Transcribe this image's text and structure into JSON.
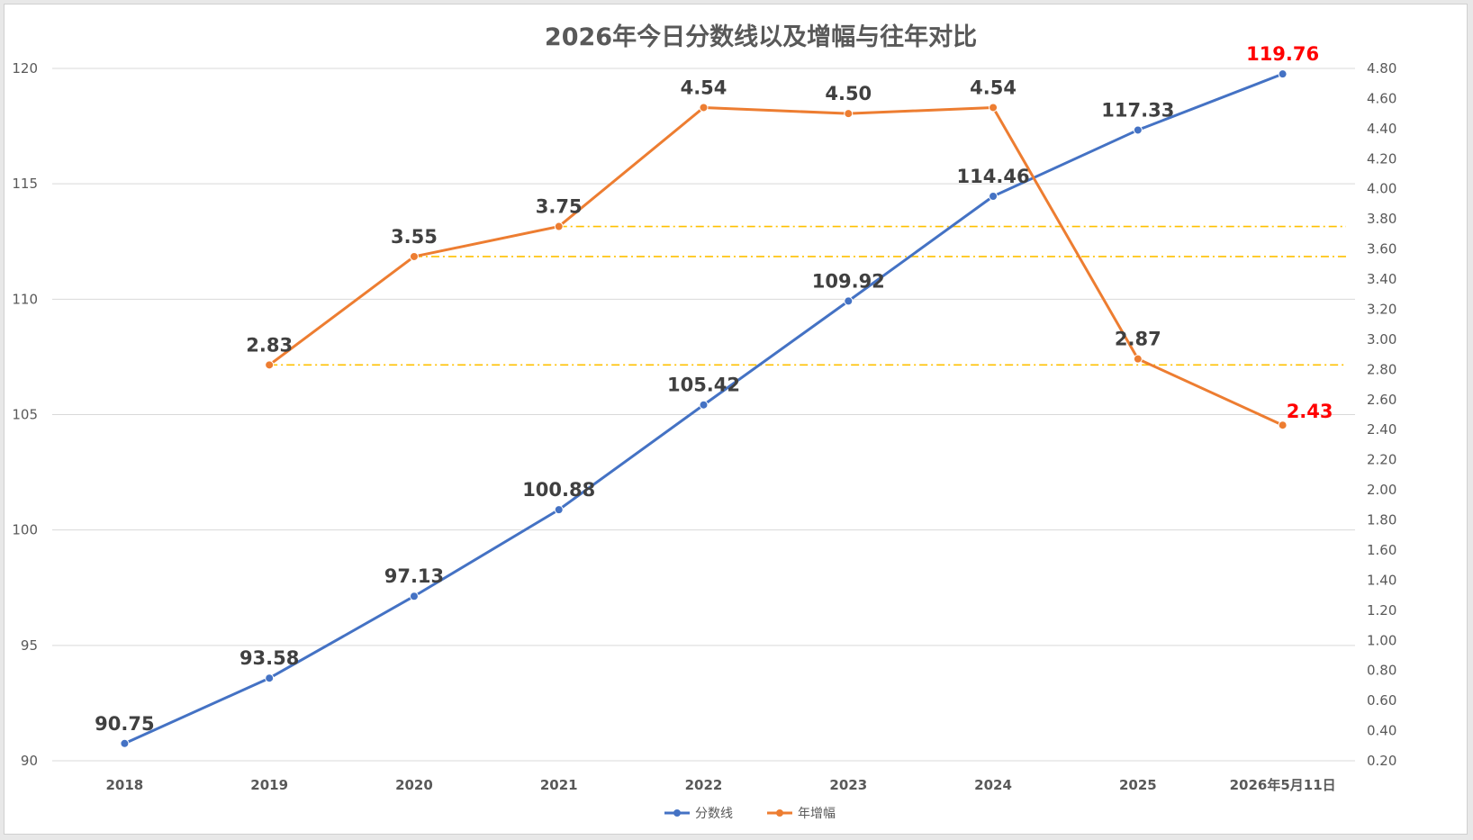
{
  "chart_data": {
    "type": "line",
    "title": "2026年今日分数线以及增幅与往年对比",
    "categories": [
      "2018",
      "2019",
      "2020",
      "2021",
      "2022",
      "2023",
      "2024",
      "2025",
      "2026年5月11日"
    ],
    "y_left": {
      "min": 90,
      "max": 120,
      "ticks": [
        "90",
        "95",
        "100",
        "105",
        "110",
        "115",
        "120"
      ]
    },
    "y_right": {
      "min": 0.2,
      "max": 4.8,
      "ticks": [
        "0.20",
        "0.40",
        "0.60",
        "0.80",
        "1.00",
        "1.20",
        "1.40",
        "1.60",
        "1.80",
        "2.00",
        "2.20",
        "2.40",
        "2.60",
        "2.80",
        "3.00",
        "3.20",
        "3.40",
        "3.60",
        "3.80",
        "4.00",
        "4.20",
        "4.40",
        "4.60",
        "4.80"
      ]
    },
    "series": [
      {
        "name": "分数线",
        "axis": "left",
        "color": "#4472c4",
        "values": [
          90.75,
          93.58,
          97.13,
          100.88,
          105.42,
          109.92,
          114.46,
          117.33,
          119.76
        ],
        "labels": [
          "90.75",
          "93.58",
          "97.13",
          "100.88",
          "105.42",
          "109.92",
          "114.46",
          "117.33",
          "119.76"
        ],
        "label_colors": [
          "#404040",
          "#404040",
          "#404040",
          "#404040",
          "#404040",
          "#404040",
          "#404040",
          "#404040",
          "#ff0000"
        ]
      },
      {
        "name": "年增幅",
        "axis": "right",
        "color": "#ed7d31",
        "values": [
          null,
          2.83,
          3.55,
          3.75,
          4.54,
          4.5,
          4.54,
          2.87,
          2.43
        ],
        "labels": [
          "",
          "2.83",
          "3.55",
          "3.75",
          "4.54",
          "4.50",
          "4.54",
          "2.87",
          "2.43"
        ],
        "label_colors": [
          "#404040",
          "#404040",
          "#404040",
          "#404040",
          "#404040",
          "#404040",
          "#404040",
          "#404040",
          "#ff0000"
        ]
      }
    ],
    "reference_lines": [
      {
        "axis": "right",
        "value": 2.83,
        "from_category": 1,
        "color": "#ffc000"
      },
      {
        "axis": "right",
        "value": 3.55,
        "from_category": 2,
        "color": "#ffc000"
      },
      {
        "axis": "right",
        "value": 3.75,
        "from_category": 3,
        "color": "#ffc000"
      }
    ],
    "grid": true,
    "legend": {
      "position": "bottom",
      "entries": [
        "分数线",
        "年增幅"
      ]
    }
  }
}
